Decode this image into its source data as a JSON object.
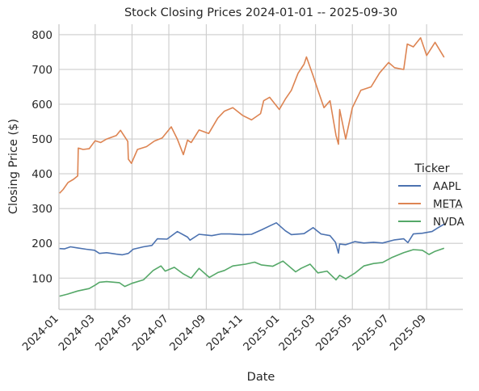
{
  "chart_data": {
    "type": "line",
    "title": "Stock Closing Prices 2024-01-01 -- 2025-09-30",
    "xlabel": "Date",
    "ylabel": "Closing Price ($)",
    "xlim": [
      "2024-01-01",
      "2025-10-31"
    ],
    "ylim": [
      10,
      830
    ],
    "x_ticks": [
      "2024-01",
      "2024-03",
      "2024-05",
      "2024-07",
      "2024-09",
      "2024-11",
      "2025-01",
      "2025-03",
      "2025-05",
      "2025-07",
      "2025-09"
    ],
    "y_ticks": [
      100,
      200,
      300,
      400,
      500,
      600,
      700,
      800
    ],
    "grid": true,
    "legend": {
      "title": "Ticker",
      "placement": "center-right"
    },
    "series": [
      {
        "name": "AAPL",
        "color": "#4c72b0",
        "points": [
          [
            "2024-01-02",
            185
          ],
          [
            "2024-01-10",
            184
          ],
          [
            "2024-01-20",
            190
          ],
          [
            "2024-01-31",
            187
          ],
          [
            "2024-02-15",
            183
          ],
          [
            "2024-02-29",
            180
          ],
          [
            "2024-03-08",
            171
          ],
          [
            "2024-03-20",
            173
          ],
          [
            "2024-04-05",
            169
          ],
          [
            "2024-04-15",
            167
          ],
          [
            "2024-04-25",
            171
          ],
          [
            "2024-05-03",
            183
          ],
          [
            "2024-05-20",
            190
          ],
          [
            "2024-06-03",
            194
          ],
          [
            "2024-06-12",
            213
          ],
          [
            "2024-06-28",
            212
          ],
          [
            "2024-07-15",
            234
          ],
          [
            "2024-08-01",
            218
          ],
          [
            "2024-08-05",
            209
          ],
          [
            "2024-08-20",
            226
          ],
          [
            "2024-09-10",
            222
          ],
          [
            "2024-09-25",
            227
          ],
          [
            "2024-10-10",
            227
          ],
          [
            "2024-10-31",
            225
          ],
          [
            "2024-11-15",
            226
          ],
          [
            "2024-12-02",
            239
          ],
          [
            "2024-12-16",
            251
          ],
          [
            "2024-12-26",
            259
          ],
          [
            "2025-01-10",
            236
          ],
          [
            "2025-01-20",
            225
          ],
          [
            "2025-02-10",
            228
          ],
          [
            "2025-02-25",
            245
          ],
          [
            "2025-03-10",
            227
          ],
          [
            "2025-03-25",
            222
          ],
          [
            "2025-04-03",
            203
          ],
          [
            "2025-04-08",
            172
          ],
          [
            "2025-04-10",
            198
          ],
          [
            "2025-04-20",
            196
          ],
          [
            "2025-05-05",
            205
          ],
          [
            "2025-05-20",
            201
          ],
          [
            "2025-06-05",
            203
          ],
          [
            "2025-06-20",
            201
          ],
          [
            "2025-07-10",
            210
          ],
          [
            "2025-07-25",
            213
          ],
          [
            "2025-08-01",
            202
          ],
          [
            "2025-08-10",
            227
          ],
          [
            "2025-08-25",
            229
          ],
          [
            "2025-09-10",
            234
          ],
          [
            "2025-09-20",
            245
          ],
          [
            "2025-09-30",
            255
          ]
        ]
      },
      {
        "name": "META",
        "color": "#dd8452",
        "points": [
          [
            "2024-01-02",
            344
          ],
          [
            "2024-01-08",
            355
          ],
          [
            "2024-01-16",
            375
          ],
          [
            "2024-01-25",
            384
          ],
          [
            "2024-02-01",
            394
          ],
          [
            "2024-02-02",
            474
          ],
          [
            "2024-02-10",
            470
          ],
          [
            "2024-02-20",
            472
          ],
          [
            "2024-03-01",
            495
          ],
          [
            "2024-03-10",
            490
          ],
          [
            "2024-03-20",
            500
          ],
          [
            "2024-04-05",
            510
          ],
          [
            "2024-04-12",
            525
          ],
          [
            "2024-04-24",
            493
          ],
          [
            "2024-04-25",
            442
          ],
          [
            "2024-04-30",
            430
          ],
          [
            "2024-05-10",
            470
          ],
          [
            "2024-05-25",
            478
          ],
          [
            "2024-06-07",
            494
          ],
          [
            "2024-06-20",
            503
          ],
          [
            "2024-07-05",
            535
          ],
          [
            "2024-07-15",
            500
          ],
          [
            "2024-07-25",
            455
          ],
          [
            "2024-08-01",
            497
          ],
          [
            "2024-08-07",
            490
          ],
          [
            "2024-08-20",
            526
          ],
          [
            "2024-09-05",
            516
          ],
          [
            "2024-09-20",
            560
          ],
          [
            "2024-10-01",
            580
          ],
          [
            "2024-10-15",
            590
          ],
          [
            "2024-10-31",
            568
          ],
          [
            "2024-11-15",
            555
          ],
          [
            "2024-11-30",
            573
          ],
          [
            "2024-12-05",
            610
          ],
          [
            "2024-12-15",
            620
          ],
          [
            "2024-12-31",
            585
          ],
          [
            "2025-01-10",
            615
          ],
          [
            "2025-01-20",
            640
          ],
          [
            "2025-01-31",
            689
          ],
          [
            "2025-02-10",
            715
          ],
          [
            "2025-02-14",
            736
          ],
          [
            "2025-02-25",
            682
          ],
          [
            "2025-03-05",
            640
          ],
          [
            "2025-03-15",
            590
          ],
          [
            "2025-03-25",
            610
          ],
          [
            "2025-04-04",
            510
          ],
          [
            "2025-04-08",
            485
          ],
          [
            "2025-04-10",
            585
          ],
          [
            "2025-04-20",
            500
          ],
          [
            "2025-05-01",
            590
          ],
          [
            "2025-05-15",
            640
          ],
          [
            "2025-06-01",
            650
          ],
          [
            "2025-06-15",
            690
          ],
          [
            "2025-06-30",
            720
          ],
          [
            "2025-07-10",
            705
          ],
          [
            "2025-07-25",
            700
          ],
          [
            "2025-07-31",
            773
          ],
          [
            "2025-08-10",
            765
          ],
          [
            "2025-08-22",
            791
          ],
          [
            "2025-09-01",
            740
          ],
          [
            "2025-09-15",
            778
          ],
          [
            "2025-09-30",
            735
          ]
        ]
      },
      {
        "name": "NVDA",
        "color": "#55a868",
        "points": [
          [
            "2024-01-02",
            48
          ],
          [
            "2024-01-15",
            54
          ],
          [
            "2024-02-01",
            63
          ],
          [
            "2024-02-20",
            70
          ],
          [
            "2024-03-01",
            80
          ],
          [
            "2024-03-08",
            88
          ],
          [
            "2024-03-20",
            90
          ],
          [
            "2024-04-10",
            87
          ],
          [
            "2024-04-19",
            76
          ],
          [
            "2024-05-01",
            85
          ],
          [
            "2024-05-20",
            95
          ],
          [
            "2024-06-05",
            122
          ],
          [
            "2024-06-18",
            135
          ],
          [
            "2024-06-25",
            120
          ],
          [
            "2024-07-10",
            131
          ],
          [
            "2024-07-25",
            112
          ],
          [
            "2024-08-07",
            100
          ],
          [
            "2024-08-20",
            128
          ],
          [
            "2024-09-06",
            102
          ],
          [
            "2024-09-20",
            116
          ],
          [
            "2024-10-01",
            122
          ],
          [
            "2024-10-15",
            135
          ],
          [
            "2024-11-05",
            140
          ],
          [
            "2024-11-20",
            146
          ],
          [
            "2024-12-01",
            138
          ],
          [
            "2024-12-20",
            134
          ],
          [
            "2025-01-06",
            149
          ],
          [
            "2025-01-27",
            118
          ],
          [
            "2025-02-05",
            128
          ],
          [
            "2025-02-20",
            140
          ],
          [
            "2025-03-05",
            115
          ],
          [
            "2025-03-20",
            120
          ],
          [
            "2025-04-04",
            95
          ],
          [
            "2025-04-10",
            108
          ],
          [
            "2025-04-20",
            98
          ],
          [
            "2025-05-05",
            114
          ],
          [
            "2025-05-20",
            135
          ],
          [
            "2025-06-05",
            142
          ],
          [
            "2025-06-20",
            145
          ],
          [
            "2025-07-05",
            159
          ],
          [
            "2025-07-25",
            173
          ],
          [
            "2025-08-10",
            182
          ],
          [
            "2025-08-25",
            180
          ],
          [
            "2025-09-05",
            168
          ],
          [
            "2025-09-15",
            177
          ],
          [
            "2025-09-30",
            186
          ]
        ]
      }
    ]
  }
}
